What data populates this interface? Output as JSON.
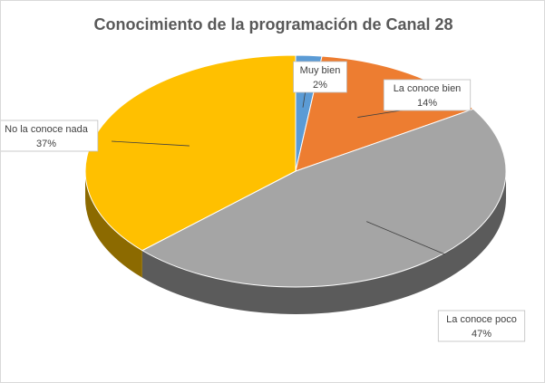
{
  "chart_data": {
    "type": "pie",
    "title": "Conocimiento de la programación de Canal 28",
    "slices": [
      {
        "label": "Muy bien",
        "value": 2,
        "pct_text": "2%",
        "color": "#5b9bd5"
      },
      {
        "label": "La conoce bien",
        "value": 14,
        "pct_text": "14%",
        "color": "#ed7d31"
      },
      {
        "label": "La conoce poco",
        "value": 47,
        "pct_text": "47%",
        "color": "#a5a5a5"
      },
      {
        "label": "No la conoce nada",
        "value": 37,
        "pct_text": "37%",
        "color": "#ffc000"
      }
    ],
    "style": "3d-exploded",
    "legend": "none"
  }
}
